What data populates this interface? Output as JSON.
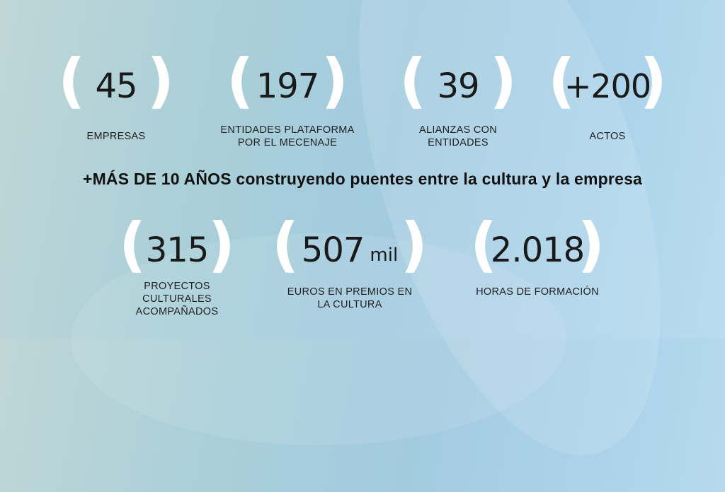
{
  "stats_top": [
    {
      "value": "45",
      "unit": "",
      "label": [
        "EMPRESAS"
      ]
    },
    {
      "value": "197",
      "unit": "",
      "label": [
        "ENTIDADES PLATAFORMA",
        "POR EL MECENAJE"
      ]
    },
    {
      "value": "39",
      "unit": "",
      "label": [
        "ALIANZAS CON",
        "ENTIDADES"
      ]
    },
    {
      "value": "+200",
      "unit": "",
      "label": [
        "ACTOS"
      ]
    }
  ],
  "tagline": {
    "bold": "+MÁS DE 10 AÑOS",
    "rest": " construyendo puentes entre la cultura y la empresa"
  },
  "stats_bottom": [
    {
      "value": "315",
      "unit": "",
      "label": [
        "PROYECTOS",
        "CULTURALES",
        "ACOMPAÑADOS"
      ]
    },
    {
      "value": "507",
      "unit": "mil",
      "label": [
        "EUROS EN PREMIOS EN",
        "LA CULTURA"
      ]
    },
    {
      "value": "2.018",
      "unit": "",
      "label": [
        "HORAS DE FORMACIÓN"
      ]
    }
  ],
  "parens": {
    "open": "(",
    "close": ")"
  },
  "colors": {
    "paren": "#ffffff",
    "text": "#1a1a1a"
  }
}
